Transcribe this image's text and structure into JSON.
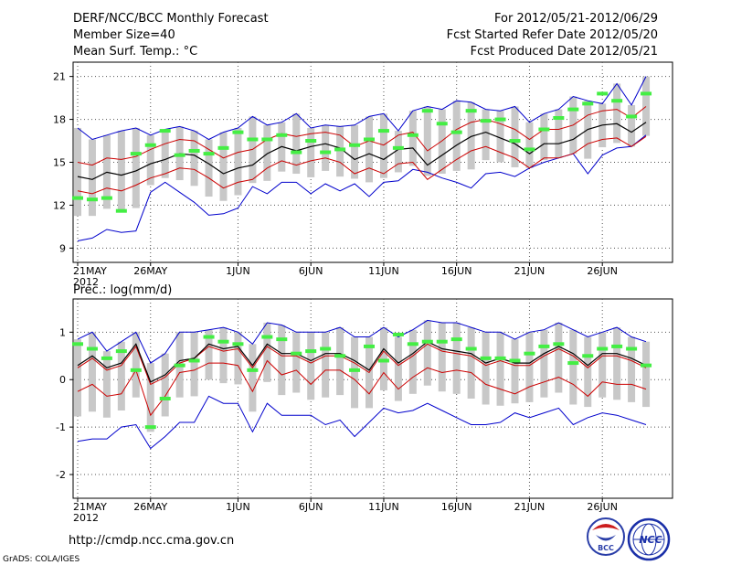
{
  "header": {
    "title_line1": "DERF/NCC/BCC Monthly Forecast",
    "title_line2": "Member Size=40",
    "title_line3": "Mean Surf. Temp.: °C",
    "period": "For 2012/05/21-2012/06/29",
    "start_date": "Fcst Started Refer Date 2012/05/20",
    "produced_date": "Fcst Produced Date 2012/05/21"
  },
  "footer": {
    "url": "http://cmdp.ncc.cma.gov.cn",
    "credit": "GrADS: COLA/IGES",
    "logo_bcc": "BCC",
    "logo_ncc": "NCC"
  },
  "colors": {
    "ensemble_mean": "#000000",
    "spread_upper": "#0000cc",
    "spread_lower": "#0000cc",
    "inner_band": "#cc0000",
    "bars": "#c8c8c8",
    "green_marks": "#44ee44"
  },
  "chart_data": [
    {
      "type": "line",
      "title": "Mean Surf. Temp.: °C",
      "x_days": 40,
      "x_tick_labels": [
        "21MAY",
        "26MAY",
        "1JUN",
        "6JUN",
        "11JUN",
        "16JUN",
        "21JUN",
        "26JUN"
      ],
      "x_tick_days": [
        0,
        5,
        11,
        16,
        21,
        26,
        31,
        36
      ],
      "year_label": "2012",
      "ylim": [
        8,
        22
      ],
      "yticks": [
        9,
        12,
        15,
        18,
        21
      ],
      "series": [
        {
          "name": "ensemble_mean",
          "values": [
            14.0,
            13.8,
            14.3,
            14.1,
            14.4,
            14.9,
            15.2,
            15.6,
            15.5,
            14.9,
            14.2,
            14.6,
            14.8,
            15.6,
            16.1,
            15.8,
            16.1,
            16.3,
            16.0,
            15.2,
            15.6,
            15.2,
            15.9,
            16.0,
            14.8,
            15.5,
            16.2,
            16.8,
            17.1,
            16.7,
            16.3,
            15.6,
            16.3,
            16.3,
            16.6,
            17.3,
            17.6,
            17.7,
            17.1,
            17.8
          ]
        },
        {
          "name": "upper_blue",
          "values": [
            17.4,
            16.6,
            16.9,
            17.2,
            17.4,
            16.9,
            17.3,
            17.5,
            17.2,
            16.6,
            17.1,
            17.4,
            18.2,
            17.6,
            17.8,
            18.4,
            17.4,
            17.6,
            17.5,
            17.6,
            18.2,
            18.4,
            17.2,
            18.6,
            18.9,
            18.7,
            19.3,
            19.2,
            18.7,
            18.6,
            18.9,
            17.8,
            18.4,
            18.7,
            19.6,
            19.3,
            19.1,
            20.5,
            19.0,
            21.0
          ]
        },
        {
          "name": "lower_blue",
          "values": [
            9.5,
            9.7,
            10.3,
            10.1,
            10.2,
            12.9,
            13.6,
            12.9,
            12.2,
            11.3,
            11.4,
            11.8,
            13.3,
            12.8,
            13.6,
            13.6,
            12.8,
            13.5,
            13.0,
            13.5,
            12.6,
            13.6,
            13.7,
            14.5,
            14.3,
            13.9,
            13.6,
            13.2,
            14.2,
            14.3,
            14.0,
            14.6,
            15.0,
            15.3,
            15.6,
            14.2,
            15.5,
            16.0,
            16.1,
            16.9
          ]
        },
        {
          "name": "upper_red",
          "values": [
            15.0,
            14.8,
            15.3,
            15.2,
            15.4,
            15.9,
            16.3,
            16.6,
            16.5,
            15.9,
            15.3,
            15.7,
            15.9,
            16.6,
            17.0,
            16.8,
            17.0,
            17.1,
            16.9,
            16.1,
            16.5,
            16.2,
            16.9,
            17.1,
            15.8,
            16.5,
            17.3,
            17.8,
            18.0,
            17.7,
            17.3,
            16.6,
            17.3,
            17.3,
            17.6,
            18.3,
            18.6,
            18.7,
            18.1,
            18.9
          ]
        },
        {
          "name": "lower_red",
          "values": [
            13.0,
            12.8,
            13.2,
            13.0,
            13.4,
            13.9,
            14.2,
            14.6,
            14.5,
            13.9,
            13.2,
            13.6,
            13.8,
            14.6,
            15.1,
            14.8,
            15.1,
            15.3,
            15.0,
            14.2,
            14.6,
            14.2,
            14.9,
            15.0,
            13.8,
            14.5,
            15.2,
            15.8,
            16.1,
            15.7,
            15.3,
            14.6,
            15.3,
            15.3,
            15.6,
            16.3,
            16.6,
            16.7,
            16.1,
            16.8
          ]
        },
        {
          "name": "green_obs",
          "values": [
            12.5,
            12.4,
            12.5,
            11.6,
            15.6,
            16.2,
            17.2,
            15.5,
            15.8,
            15.6,
            16.0,
            17.1,
            16.6,
            16.6,
            16.9,
            15.7,
            16.5,
            15.7,
            15.9,
            16.2,
            16.6,
            17.2,
            16.0,
            16.9,
            18.6,
            17.7,
            17.1,
            18.6,
            17.9,
            18.0,
            16.5,
            15.9,
            17.3,
            18.1,
            18.7,
            19.1,
            19.8,
            19.3,
            18.2,
            19.8
          ]
        }
      ]
    },
    {
      "type": "line",
      "title": "Prec.: log(mm/d)",
      "x_days": 40,
      "x_tick_labels": [
        "21MAY",
        "26MAY",
        "1JUN",
        "6JUN",
        "11JUN",
        "16JUN",
        "21JUN",
        "26JUN"
      ],
      "x_tick_days": [
        0,
        5,
        11,
        16,
        21,
        26,
        31,
        36
      ],
      "year_label": "2012",
      "ylim": [
        -2.5,
        1.7
      ],
      "yticks": [
        -2,
        -1,
        0,
        1
      ],
      "series": [
        {
          "name": "ensemble_mean",
          "values": [
            0.3,
            0.5,
            0.25,
            0.35,
            0.75,
            -0.05,
            0.1,
            0.4,
            0.45,
            0.75,
            0.65,
            0.7,
            0.3,
            0.75,
            0.55,
            0.55,
            0.4,
            0.55,
            0.55,
            0.4,
            0.2,
            0.65,
            0.35,
            0.55,
            0.8,
            0.65,
            0.6,
            0.55,
            0.35,
            0.45,
            0.35,
            0.35,
            0.55,
            0.7,
            0.55,
            0.3,
            0.55,
            0.55,
            0.45,
            0.3
          ]
        },
        {
          "name": "upper_blue",
          "values": [
            0.85,
            1.0,
            0.6,
            0.8,
            1.0,
            0.35,
            0.55,
            1.0,
            1.0,
            1.05,
            1.1,
            1.0,
            0.75,
            1.2,
            1.15,
            1.0,
            1.0,
            1.0,
            1.1,
            0.9,
            0.9,
            1.1,
            0.9,
            1.05,
            1.25,
            1.2,
            1.2,
            1.1,
            1.0,
            1.0,
            0.85,
            1.0,
            1.05,
            1.2,
            1.05,
            0.9,
            1.0,
            1.1,
            0.9,
            0.8
          ]
        },
        {
          "name": "lower_blue",
          "values": [
            -1.3,
            -1.25,
            -1.25,
            -1.0,
            -0.95,
            -1.45,
            -1.2,
            -0.9,
            -0.9,
            -0.35,
            -0.5,
            -0.5,
            -1.1,
            -0.5,
            -0.75,
            -0.75,
            -0.75,
            -0.95,
            -0.85,
            -1.2,
            -0.9,
            -0.6,
            -0.7,
            -0.65,
            -0.5,
            -0.65,
            -0.8,
            -0.95,
            -0.95,
            -0.9,
            -0.7,
            -0.8,
            -0.7,
            -0.6,
            -0.95,
            -0.8,
            -0.7,
            -0.75,
            -0.85,
            -0.95
          ]
        },
        {
          "name": "upper_red",
          "values": [
            0.25,
            0.45,
            0.2,
            0.3,
            0.7,
            -0.1,
            0.05,
            0.35,
            0.45,
            0.7,
            0.6,
            0.65,
            0.25,
            0.7,
            0.5,
            0.5,
            0.35,
            0.5,
            0.5,
            0.35,
            0.15,
            0.6,
            0.3,
            0.5,
            0.75,
            0.6,
            0.55,
            0.5,
            0.3,
            0.4,
            0.3,
            0.3,
            0.5,
            0.65,
            0.5,
            0.25,
            0.5,
            0.5,
            0.4,
            0.25
          ]
        },
        {
          "name": "lower_red",
          "values": [
            -0.25,
            -0.1,
            -0.35,
            -0.3,
            0.2,
            -0.75,
            -0.35,
            0.15,
            0.2,
            0.35,
            0.35,
            0.3,
            -0.25,
            0.4,
            0.1,
            0.2,
            -0.1,
            0.2,
            0.2,
            0.0,
            -0.3,
            0.15,
            -0.2,
            0.05,
            0.25,
            0.15,
            0.2,
            0.15,
            -0.1,
            -0.2,
            -0.3,
            -0.15,
            -0.05,
            0.05,
            -0.1,
            -0.35,
            -0.05,
            -0.1,
            -0.1,
            -0.2
          ]
        },
        {
          "name": "green_obs",
          "values": [
            0.75,
            0.65,
            0.45,
            0.6,
            0.2,
            -1.0,
            -0.4,
            0.3,
            0.4,
            0.9,
            0.8,
            0.75,
            0.2,
            0.9,
            0.85,
            0.55,
            0.6,
            0.65,
            0.5,
            0.2,
            0.7,
            0.4,
            0.95,
            0.75,
            0.8,
            0.8,
            0.85,
            0.65,
            0.45,
            0.45,
            0.4,
            0.55,
            0.7,
            0.75,
            0.35,
            0.5,
            0.65,
            0.7,
            0.65,
            0.3
          ]
        }
      ]
    }
  ]
}
